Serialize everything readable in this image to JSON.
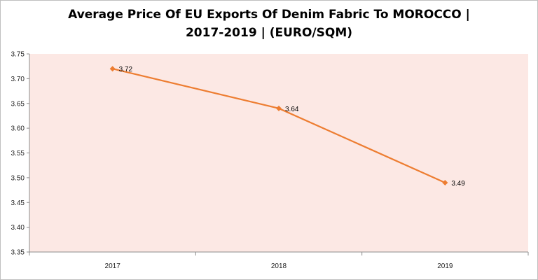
{
  "chart_data": {
    "type": "line",
    "title_line1": "Average Price Of EU Exports Of Denim Fabric To MOROCCO |",
    "title_line2": "2017-2019  | (EURO/SQM)",
    "categories": [
      "2017",
      "2018",
      "2019"
    ],
    "series": [
      {
        "values": [
          3.72,
          3.64,
          3.49
        ],
        "labels": [
          "3.72",
          "3.64",
          "3.49"
        ]
      }
    ],
    "ylim": [
      3.35,
      3.75
    ],
    "yticks": [
      "3.75",
      "3.70",
      "3.65",
      "3.60",
      "3.55",
      "3.50",
      "3.45",
      "3.40",
      "3.35"
    ],
    "xlabel": "",
    "ylabel": "",
    "grid": false,
    "legend": "none",
    "colors": {
      "line": "#ed7d31",
      "plot_bg": "#fce8e4",
      "axis": "#8c8c8c"
    }
  }
}
